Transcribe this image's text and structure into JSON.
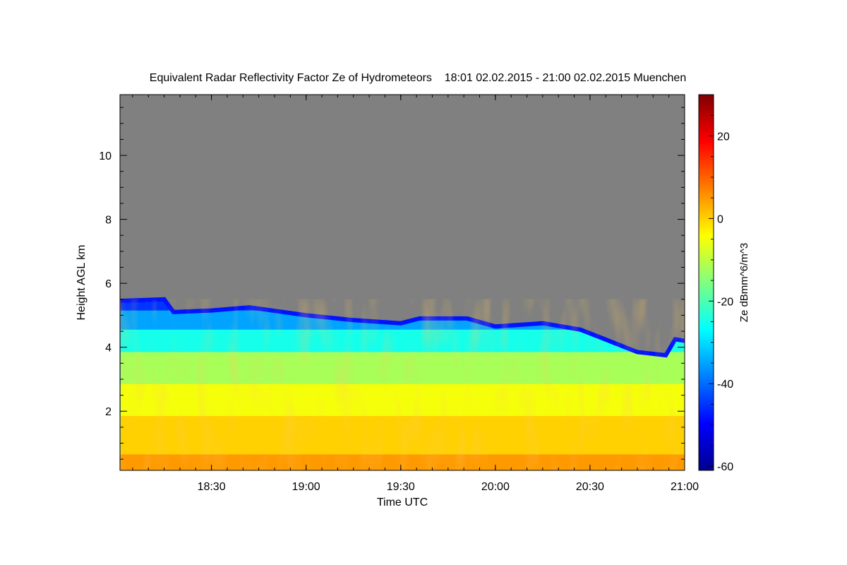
{
  "chart_data": {
    "type": "heatmap",
    "title": "Equivalent Radar Reflectivity Factor Ze of Hydrometeors    18:01 02.02.2015 - 21:00 02.02.2015 Muenchen",
    "xlabel": "Time UTC",
    "ylabel": "Height AGL km",
    "colorbar_label": "Ze dBmm^6/m^3",
    "xlim": [
      18.0167,
      21.0
    ],
    "ylim": [
      0.15,
      11.9
    ],
    "x_ticks": [
      {
        "value": 18.5,
        "label": "18:30"
      },
      {
        "value": 19.0,
        "label": "19:00"
      },
      {
        "value": 19.5,
        "label": "19:30"
      },
      {
        "value": 20.0,
        "label": "20:00"
      },
      {
        "value": 20.5,
        "label": "20:30"
      },
      {
        "value": 21.0,
        "label": "21:00"
      }
    ],
    "y_ticks": [
      {
        "value": 2,
        "label": "2"
      },
      {
        "value": 4,
        "label": "4"
      },
      {
        "value": 6,
        "label": "6"
      },
      {
        "value": 8,
        "label": "8"
      },
      {
        "value": 10,
        "label": "10"
      }
    ],
    "colorbar": {
      "range": [
        -61,
        30
      ],
      "ticks": [
        {
          "value": 20,
          "label": "20"
        },
        {
          "value": 0,
          "label": "0"
        },
        {
          "value": -20,
          "label": "-20"
        },
        {
          "value": -40,
          "label": "-40"
        },
        {
          "value": -60,
          "label": "-60"
        }
      ],
      "colormap": "jet"
    },
    "no_data_color": "#808080",
    "echo_top_km": [
      [
        18.02,
        5.45
      ],
      [
        18.25,
        5.5
      ],
      [
        18.3,
        5.1
      ],
      [
        18.5,
        5.15
      ],
      [
        18.7,
        5.25
      ],
      [
        19.0,
        5.0
      ],
      [
        19.25,
        4.85
      ],
      [
        19.5,
        4.75
      ],
      [
        19.6,
        4.9
      ],
      [
        19.85,
        4.9
      ],
      [
        20.0,
        4.65
      ],
      [
        20.25,
        4.75
      ],
      [
        20.45,
        4.55
      ],
      [
        20.6,
        4.2
      ],
      [
        20.75,
        3.85
      ],
      [
        20.9,
        3.75
      ],
      [
        20.95,
        4.25
      ],
      [
        21.0,
        4.2
      ]
    ],
    "reflectivity_profile": [
      {
        "height_km": 0.3,
        "ze_dbz": 5
      },
      {
        "height_km": 1.5,
        "ze_dbz": 0
      },
      {
        "height_km": 2.5,
        "ze_dbz": -5
      },
      {
        "height_km": 3.5,
        "ze_dbz": -12
      },
      {
        "height_km": 4.2,
        "ze_dbz": -25
      },
      {
        "height_km": 4.8,
        "ze_dbz": -35
      },
      {
        "height_km": 5.2,
        "ze_dbz": -45
      }
    ]
  }
}
